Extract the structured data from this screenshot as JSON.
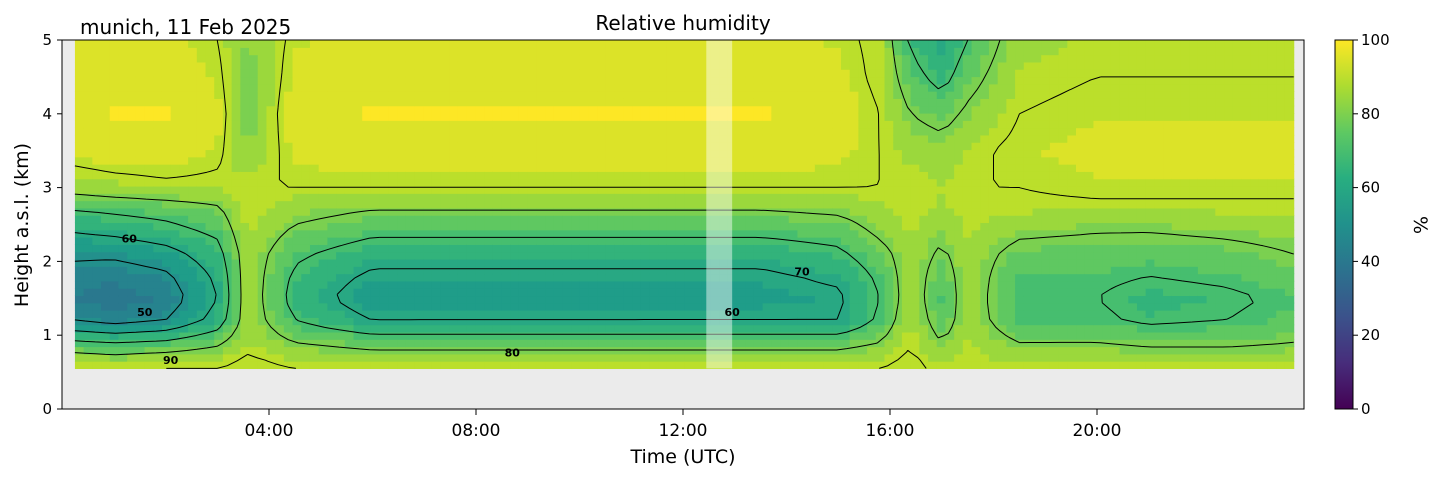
{
  "chart_data": {
    "type": "heatmap",
    "title": "Relative humidity",
    "subtitle": "munich, 11 Feb 2025",
    "xlabel": "Time (UTC)",
    "ylabel": "Height a.s.l. (km)",
    "xlim": [
      0,
      24
    ],
    "ylim": [
      0,
      5
    ],
    "x_ticks": [
      {
        "value": 4,
        "label": "04:00"
      },
      {
        "value": 8,
        "label": "08:00"
      },
      {
        "value": 12,
        "label": "12:00"
      },
      {
        "value": 16,
        "label": "16:00"
      },
      {
        "value": 20,
        "label": "20:00"
      }
    ],
    "y_ticks": [
      0,
      1,
      2,
      3,
      4,
      5
    ],
    "colorbar": {
      "label": "%",
      "min": 0,
      "max": 100,
      "ticks": [
        0,
        20,
        40,
        60,
        80,
        100
      ],
      "colormap": "viridis"
    },
    "data_bottom_km": 0.55,
    "missing_data_span_utc": [
      12.45,
      12.95
    ],
    "contour_labels": [
      {
        "text": "60",
        "x": 1.3,
        "y": 2.3
      },
      {
        "text": "50",
        "x": 1.6,
        "y": 1.3
      },
      {
        "text": "90",
        "x": 2.1,
        "y": 0.65
      },
      {
        "text": "80",
        "x": 8.7,
        "y": 0.75
      },
      {
        "text": "70",
        "x": 14.3,
        "y": 1.85
      },
      {
        "text": "60",
        "x": 12.95,
        "y": 1.3
      }
    ],
    "rh_field": {
      "heights_km": [
        0.6,
        0.9,
        1.2,
        1.5,
        1.8,
        2.1,
        2.4,
        2.7,
        3.0,
        3.5,
        4.0,
        4.5,
        5.0
      ],
      "times_utc": [
        0.2,
        1,
        2,
        3,
        3.6,
        4.5,
        6,
        8,
        10,
        11.8,
        13.5,
        15,
        15.8,
        16.4,
        17,
        17.5,
        18.5,
        20,
        21,
        22.5,
        23.8
      ],
      "rh_percent": [
        [
          90,
          88,
          90,
          90,
          92,
          90,
          88,
          88,
          88,
          88,
          88,
          88,
          90,
          92,
          88,
          90,
          88,
          90,
          88,
          88,
          88
        ],
        [
          72,
          70,
          72,
          78,
          88,
          80,
          76,
          76,
          76,
          76,
          76,
          76,
          80,
          90,
          80,
          88,
          80,
          80,
          78,
          78,
          80
        ],
        [
          50,
          46,
          50,
          64,
          86,
          70,
          60,
          60,
          60,
          60,
          60,
          60,
          72,
          88,
          74,
          86,
          72,
          72,
          68,
          70,
          74
        ],
        [
          42,
          38,
          44,
          60,
          86,
          66,
          54,
          55,
          55,
          56,
          56,
          58,
          70,
          86,
          72,
          86,
          70,
          70,
          66,
          68,
          72
        ],
        [
          46,
          44,
          48,
          62,
          86,
          68,
          58,
          58,
          58,
          58,
          58,
          62,
          72,
          86,
          74,
          86,
          72,
          72,
          70,
          72,
          76
        ],
        [
          52,
          52,
          56,
          66,
          86,
          72,
          64,
          64,
          64,
          64,
          64,
          68,
          76,
          86,
          78,
          86,
          76,
          76,
          74,
          76,
          80
        ],
        [
          60,
          62,
          66,
          72,
          88,
          78,
          72,
          72,
          72,
          72,
          72,
          74,
          82,
          88,
          82,
          88,
          82,
          80,
          80,
          82,
          84
        ],
        [
          70,
          72,
          74,
          78,
          90,
          84,
          80,
          80,
          80,
          80,
          80,
          82,
          86,
          90,
          86,
          90,
          88,
          88,
          88,
          88,
          88
        ],
        [
          84,
          86,
          88,
          88,
          90,
          90,
          90,
          90,
          90,
          90,
          90,
          90,
          90,
          90,
          88,
          90,
          90,
          92,
          92,
          92,
          92
        ],
        [
          94,
          96,
          96,
          92,
          82,
          94,
          96,
          96,
          96,
          96,
          96,
          94,
          90,
          86,
          84,
          88,
          92,
          94,
          94,
          94,
          94
        ],
        [
          96,
          98,
          98,
          94,
          80,
          96,
          98,
          98,
          98,
          98,
          98,
          96,
          90,
          80,
          76,
          82,
          90,
          92,
          92,
          92,
          92
        ],
        [
          94,
          96,
          96,
          92,
          80,
          94,
          96,
          96,
          96,
          96,
          96,
          94,
          88,
          74,
          66,
          76,
          88,
          90,
          90,
          90,
          90
        ],
        [
          92,
          94,
          94,
          90,
          82,
          92,
          94,
          94,
          94,
          94,
          94,
          92,
          88,
          68,
          60,
          70,
          86,
          88,
          88,
          88,
          88
        ]
      ]
    }
  }
}
